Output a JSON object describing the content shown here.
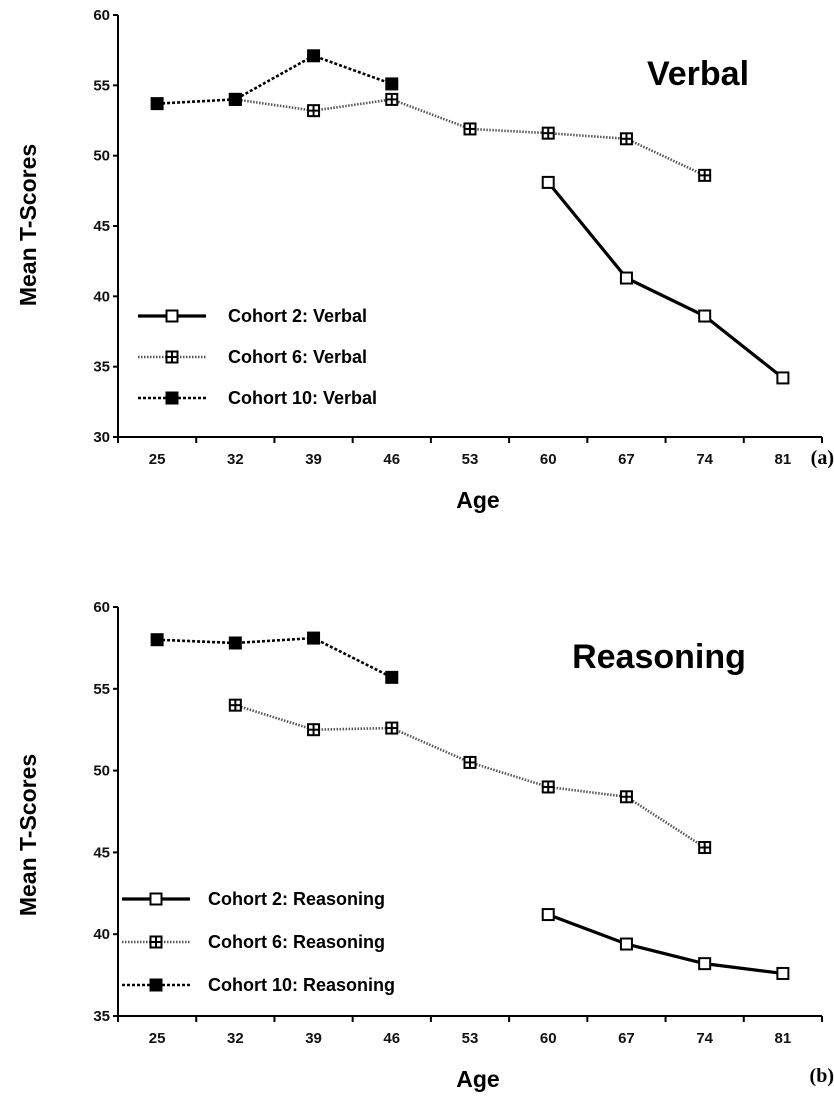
{
  "chart_data": [
    {
      "type": "line",
      "title": "Verbal",
      "panel_label": "(a)",
      "xlabel": "Age",
      "ylabel": "Mean T-Scores",
      "x": [
        25,
        32,
        39,
        46,
        53,
        60,
        67,
        74,
        81
      ],
      "ylim": [
        30,
        60
      ],
      "yticks": [
        30,
        35,
        40,
        45,
        50,
        55,
        60
      ],
      "grid": false,
      "legend_position": "bottom-left",
      "series": [
        {
          "name": "Cohort 2: Verbal",
          "style": "solid",
          "marker": "open-square",
          "points": [
            [
              60,
              48.1
            ],
            [
              67,
              41.3
            ],
            [
              74,
              38.6
            ],
            [
              81,
              34.2
            ]
          ]
        },
        {
          "name": "Cohort 6: Verbal",
          "style": "dotted",
          "marker": "crossed-square",
          "points": [
            [
              32,
              54.0
            ],
            [
              39,
              53.2
            ],
            [
              46,
              54.0
            ],
            [
              53,
              51.9
            ],
            [
              60,
              51.6
            ],
            [
              67,
              51.2
            ],
            [
              74,
              48.6
            ]
          ]
        },
        {
          "name": "Cohort 10: Verbal",
          "style": "dashed",
          "marker": "filled-square",
          "points": [
            [
              25,
              53.7
            ],
            [
              32,
              54.0
            ],
            [
              39,
              57.1
            ],
            [
              46,
              55.1
            ]
          ]
        }
      ]
    },
    {
      "type": "line",
      "title": "Reasoning",
      "panel_label": "(b)",
      "xlabel": "Age",
      "ylabel": "Mean T-Scores",
      "x": [
        25,
        32,
        39,
        46,
        53,
        60,
        67,
        74,
        81
      ],
      "ylim": [
        35,
        60
      ],
      "yticks": [
        35,
        40,
        45,
        50,
        55,
        60
      ],
      "grid": false,
      "legend_position": "bottom-left",
      "series": [
        {
          "name": "Cohort 2: Reasoning",
          "style": "solid",
          "marker": "open-square",
          "points": [
            [
              60,
              41.2
            ],
            [
              67,
              39.4
            ],
            [
              74,
              38.2
            ],
            [
              81,
              37.6
            ]
          ]
        },
        {
          "name": "Cohort 6: Reasoning",
          "style": "dotted",
          "marker": "crossed-square",
          "points": [
            [
              32,
              54.0
            ],
            [
              39,
              52.5
            ],
            [
              46,
              52.6
            ],
            [
              53,
              50.5
            ],
            [
              60,
              49.0
            ],
            [
              67,
              48.4
            ],
            [
              74,
              45.3
            ]
          ]
        },
        {
          "name": "Cohort 10: Reasoning",
          "style": "dashed",
          "marker": "filled-square",
          "points": [
            [
              25,
              58.0
            ],
            [
              32,
              57.8
            ],
            [
              39,
              58.1
            ],
            [
              46,
              55.7
            ]
          ]
        }
      ]
    }
  ]
}
